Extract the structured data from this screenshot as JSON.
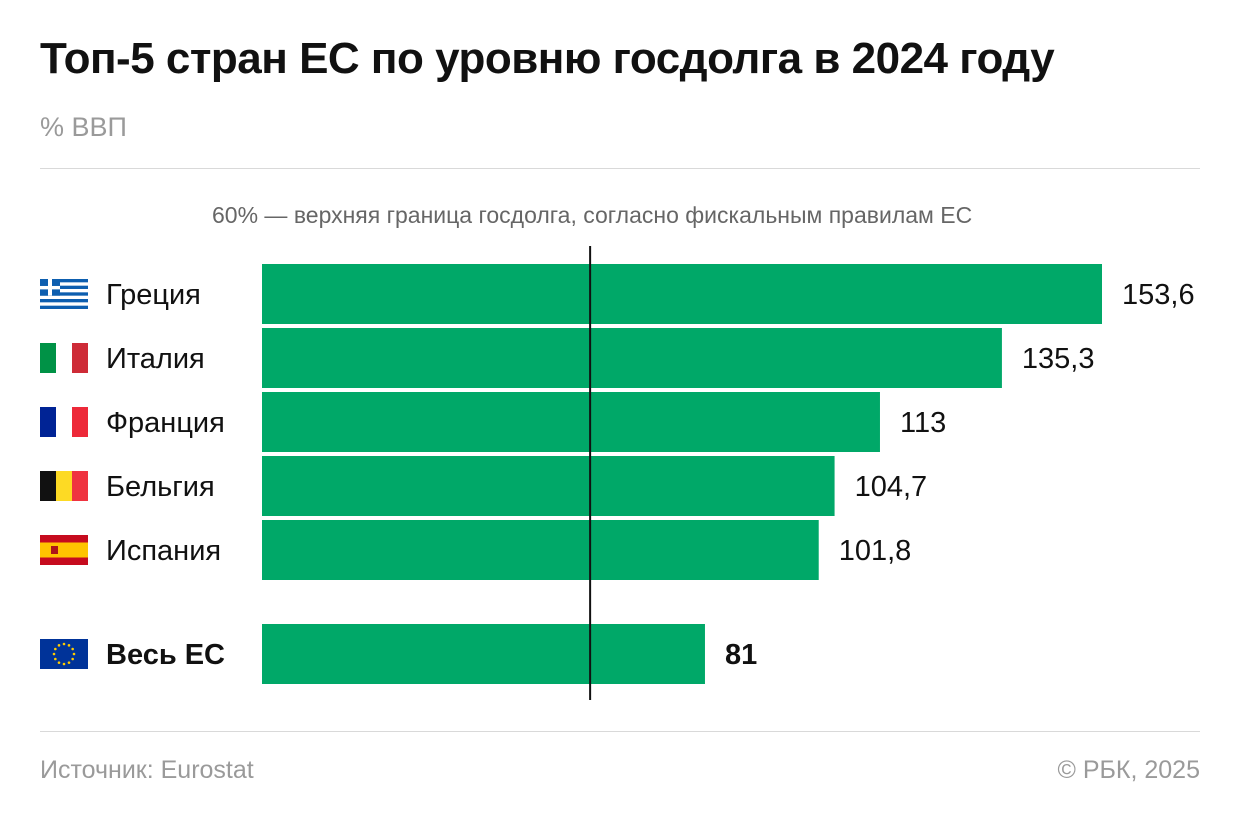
{
  "header": {
    "title": "Топ-5 стран ЕС по уровню госдолга в 2024 году",
    "subtitle": "% ВВП"
  },
  "annotation": "60% — верхняя граница госдолга, согласно фискальным правилам ЕС",
  "footer": {
    "source": "Источник: Eurostat",
    "copyright": "© РБК, 2025"
  },
  "colors": {
    "bar": "#00a868",
    "reference_line": "#111111"
  },
  "chart_data": {
    "type": "bar",
    "orientation": "horizontal",
    "categories": [
      "Греция",
      "Италия",
      "Франция",
      "Бельгия",
      "Испания",
      "Весь ЕС"
    ],
    "values": [
      153.6,
      135.3,
      113,
      104.7,
      101.8,
      81
    ],
    "value_labels": [
      "153,6",
      "135,3",
      "113",
      "104,7",
      "101,8",
      "81"
    ],
    "flags": [
      "greece-flag-icon",
      "italy-flag-icon",
      "france-flag-icon",
      "belgium-flag-icon",
      "spain-flag-icon",
      "eu-flag-icon"
    ],
    "reference_line": {
      "value": 60
    },
    "xlim": [
      0,
      153.6
    ],
    "grid": false,
    "legend": "none"
  }
}
